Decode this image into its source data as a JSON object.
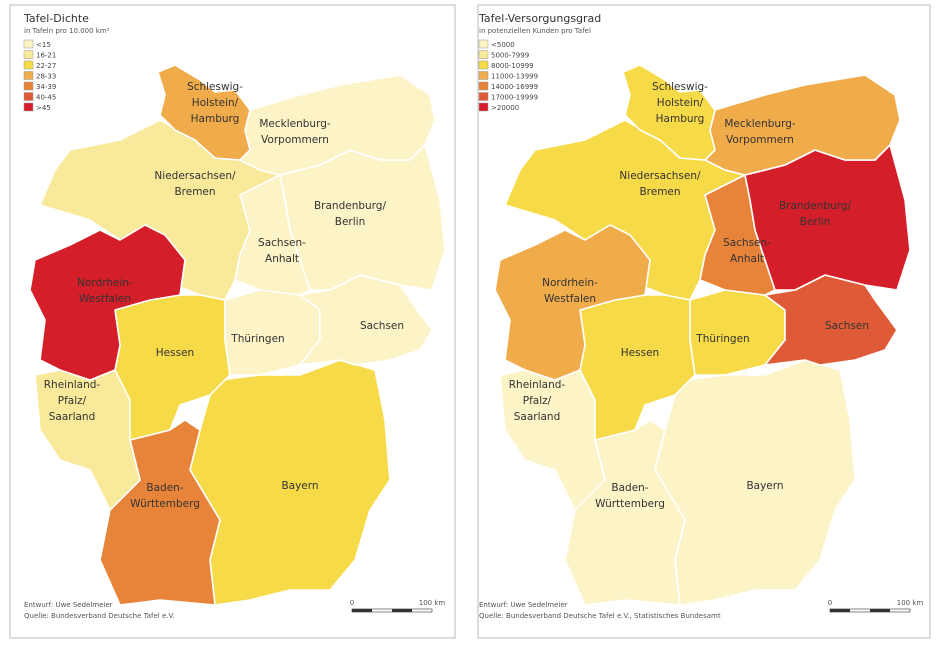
{
  "maps": [
    {
      "title": "Tafel-Dichte",
      "subtitle": "in Tafeln pro 10.000 km²",
      "legend": [
        {
          "label": "<15",
          "color": "#fcf3c6"
        },
        {
          "label": "16-21",
          "color": "#f9e99a"
        },
        {
          "label": "22-27",
          "color": "#f7da48"
        },
        {
          "label": "28-33",
          "color": "#f0ab4a"
        },
        {
          "label": "34-39",
          "color": "#e8843a"
        },
        {
          "label": "40-45",
          "color": "#df5b37"
        },
        {
          "label": ">45",
          "color": "#d41f2a"
        }
      ],
      "regions": [
        {
          "lines": [
            "Schleswig-",
            "Holstein/",
            "Hamburg"
          ],
          "color": "#f0ab4a"
        },
        {
          "lines": [
            "Mecklenburg-",
            "Vorpommern"
          ],
          "color": "#fcf3c6"
        },
        {
          "lines": [
            "Niedersachsen/",
            "Bremen"
          ],
          "color": "#f9e99a"
        },
        {
          "lines": [
            "Brandenburg/",
            "Berlin"
          ],
          "color": "#fcf3c6"
        },
        {
          "lines": [
            "Sachsen-",
            "Anhalt"
          ],
          "color": "#fcf3c6"
        },
        {
          "lines": [
            "Nordrhein-",
            "Westfalen"
          ],
          "color": "#d41f2a"
        },
        {
          "lines": [
            "Sachsen"
          ],
          "color": "#fcf3c6"
        },
        {
          "lines": [
            "Thüringen"
          ],
          "color": "#fcf3c6"
        },
        {
          "lines": [
            "Hessen"
          ],
          "color": "#f7da48"
        },
        {
          "lines": [
            "Rheinland-",
            "Pfalz/",
            "Saarland"
          ],
          "color": "#f9e99a"
        },
        {
          "lines": [
            "Baden-",
            "Württemberg"
          ],
          "color": "#e8843a"
        },
        {
          "lines": [
            "Bayern"
          ],
          "color": "#f7da48"
        }
      ],
      "credits": [
        "Entwurf: Uwe Sedelmeier",
        "Quelle: Bundesverband Deutsche Tafel e.V."
      ],
      "scale": [
        "0",
        "100 km"
      ]
    },
    {
      "title": "Tafel-Versorgungsgrad",
      "subtitle": "in potenziellen Kunden pro Tafel",
      "legend": [
        {
          "label": "<5000",
          "color": "#fcf3c6"
        },
        {
          "label": "5000-7999",
          "color": "#f9e99a"
        },
        {
          "label": "8000-10999",
          "color": "#f7da48"
        },
        {
          "label": "11000-13999",
          "color": "#f0ab4a"
        },
        {
          "label": "14000-16999",
          "color": "#e8843a"
        },
        {
          "label": "17000-19999",
          "color": "#df5b37"
        },
        {
          "label": ">20000",
          "color": "#d41f2a"
        }
      ],
      "regions": [
        {
          "lines": [
            "Schleswig-",
            "Holstein/",
            "Hamburg"
          ],
          "color": "#f7da48"
        },
        {
          "lines": [
            "Mecklenburg-",
            "Vorpommern"
          ],
          "color": "#f0ab4a"
        },
        {
          "lines": [
            "Niedersachsen/",
            "Bremen"
          ],
          "color": "#f7da48"
        },
        {
          "lines": [
            "Brandenburg/",
            "Berlin"
          ],
          "color": "#d41f2a"
        },
        {
          "lines": [
            "Sachsen-",
            "Anhalt"
          ],
          "color": "#e8843a"
        },
        {
          "lines": [
            "Nordrhein-",
            "Westfalen"
          ],
          "color": "#f0ab4a"
        },
        {
          "lines": [
            "Sachsen"
          ],
          "color": "#df5b37"
        },
        {
          "lines": [
            "Thüringen"
          ],
          "color": "#f7da48"
        },
        {
          "lines": [
            "Hessen"
          ],
          "color": "#f7da48"
        },
        {
          "lines": [
            "Rheinland-",
            "Pfalz/",
            "Saarland"
          ],
          "color": "#fcf3c6"
        },
        {
          "lines": [
            "Baden-",
            "Württemberg"
          ],
          "color": "#fcf3c6"
        },
        {
          "lines": [
            "Bayern"
          ],
          "color": "#fcf3c6"
        }
      ],
      "credits": [
        "Entwurf: Uwe Sedelmeier",
        "Quelle: Bundesverband Deutsche Tafel e.V., Statistisches Bundesamt"
      ],
      "scale": [
        "0",
        "100 km"
      ]
    }
  ]
}
